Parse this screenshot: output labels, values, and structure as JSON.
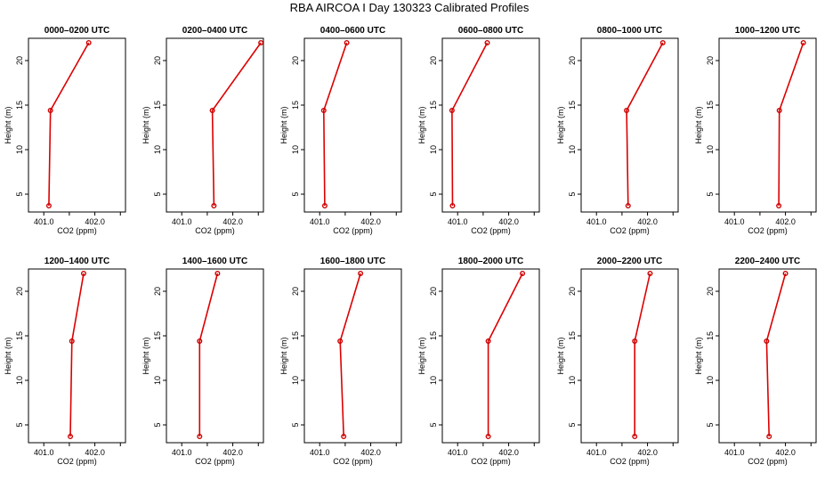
{
  "title": "RBA AIRCOA I  Day 130323  Calibrated Profiles",
  "colors": {
    "line": "#dd0000",
    "marker": "#cc0000",
    "axis": "#000000"
  },
  "chart_data": {
    "type": "line",
    "xlabel": "CO2 (ppm)",
    "ylabel": "Height (m)",
    "xlim": [
      400.7,
      402.6
    ],
    "ylim": [
      3.0,
      22.5
    ],
    "xticks": [
      401.0,
      401.5,
      402.0,
      402.5
    ],
    "xtick_labels": [
      "401.0",
      "",
      "402.0",
      ""
    ],
    "yticks": [
      5,
      10,
      15,
      20
    ],
    "ytick_labels": [
      "5",
      "10",
      "15",
      "20"
    ],
    "heights": [
      3.7,
      14.4,
      22.0
    ],
    "panels": [
      {
        "title": "0000–0200 UTC",
        "co2": [
          401.1,
          401.13,
          401.88
        ]
      },
      {
        "title": "0200–0400 UTC",
        "co2": [
          401.63,
          401.6,
          402.55
        ]
      },
      {
        "title": "0400–0600 UTC",
        "co2": [
          401.1,
          401.08,
          401.53
        ]
      },
      {
        "title": "0600–0800 UTC",
        "co2": [
          400.9,
          400.89,
          401.58
        ]
      },
      {
        "title": "0800–1000 UTC",
        "co2": [
          401.62,
          401.59,
          402.3
        ]
      },
      {
        "title": "1000–1200 UTC",
        "co2": [
          401.87,
          401.88,
          402.35
        ]
      },
      {
        "title": "1200–1400 UTC",
        "co2": [
          401.52,
          401.55,
          401.78
        ]
      },
      {
        "title": "1400–1600 UTC",
        "co2": [
          401.35,
          401.35,
          401.7
        ]
      },
      {
        "title": "1600–1800 UTC",
        "co2": [
          401.47,
          401.4,
          401.8
        ]
      },
      {
        "title": "1800–2000 UTC",
        "co2": [
          401.6,
          401.6,
          402.27
        ]
      },
      {
        "title": "2000–2200 UTC",
        "co2": [
          401.75,
          401.75,
          402.05
        ]
      },
      {
        "title": "2200–2400 UTC",
        "co2": [
          401.68,
          401.63,
          402.0
        ]
      }
    ]
  }
}
